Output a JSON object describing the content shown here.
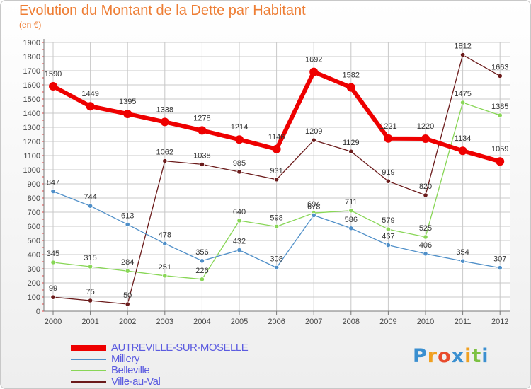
{
  "header": {
    "title": "Evolution du Montant de la Dette par Habitant",
    "subtitle": "(en €)"
  },
  "brand": {
    "text": "Proxiti",
    "letter_colors": [
      "#3a8fd0",
      "#f0a020",
      "#e84a2c",
      "#3a8fd0",
      "#f0a020",
      "#7cc142",
      "#3a8fd0"
    ]
  },
  "colors": {
    "title": "#ee7e35",
    "axis": "#777777",
    "grid": "#c8c8c8",
    "label": "#444444",
    "legend_text": "#5b5be0"
  },
  "chart_data": {
    "type": "line",
    "title": "Evolution du Montant de la Dette par Habitant",
    "ylabel": "(en €)",
    "xlabel": "",
    "x": [
      "2000",
      "2001",
      "2002",
      "2003",
      "2004",
      "2005",
      "2006",
      "2007",
      "2008",
      "2009",
      "2010",
      "2011",
      "2012"
    ],
    "ylim": [
      0,
      1900
    ],
    "yticks": [
      0,
      100,
      200,
      300,
      400,
      500,
      600,
      700,
      800,
      900,
      1000,
      1100,
      1200,
      1300,
      1400,
      1500,
      1600,
      1700,
      1800,
      1900
    ],
    "grid": true,
    "legend_position": "bottom-left",
    "series": [
      {
        "name": "AUTREVILLE-SUR-MOSELLE",
        "color": "#ee0000",
        "width": 6,
        "values": [
          1590,
          1449,
          1395,
          1338,
          1278,
          1214,
          1146,
          1692,
          1582,
          1221,
          1220,
          1134,
          1059
        ]
      },
      {
        "name": "Millery",
        "color": "#4f8fc8",
        "width": 1.3,
        "values": [
          847,
          744,
          613,
          478,
          356,
          432,
          308,
          678,
          586,
          467,
          406,
          354,
          307
        ]
      },
      {
        "name": "Belleville",
        "color": "#88d656",
        "width": 1.3,
        "values": [
          345,
          315,
          284,
          251,
          226,
          640,
          598,
          694,
          711,
          579,
          525,
          1475,
          1385
        ]
      },
      {
        "name": "Ville-au-Val",
        "color": "#6b1b1b",
        "width": 1.3,
        "values": [
          99,
          75,
          50,
          1062,
          1038,
          985,
          931,
          1209,
          1129,
          919,
          820,
          1812,
          1663
        ]
      }
    ]
  }
}
